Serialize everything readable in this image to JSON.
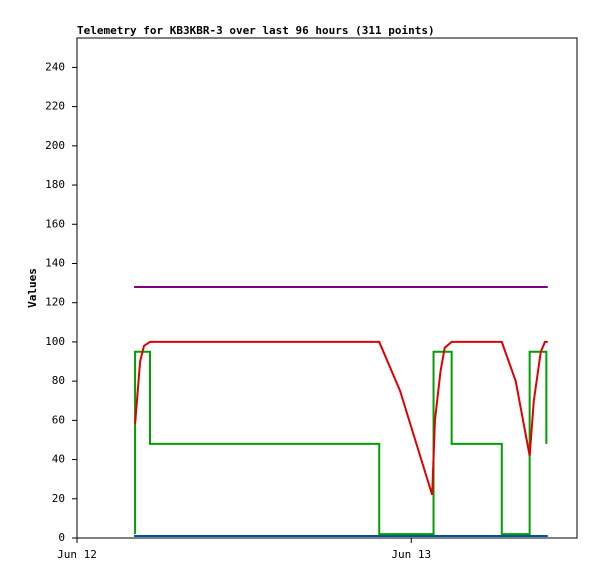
{
  "chart_data": {
    "type": "line",
    "title": "Telemetry for KB3KBR-3 over last 96 hours (311 points)",
    "y_label": "Values",
    "xlim": [
      0,
      35.9
    ],
    "ylim": [
      0,
      255
    ],
    "xticks": [
      {
        "value": 0,
        "label": "Jun 12"
      },
      {
        "value": 24,
        "label": "Jun 13"
      }
    ],
    "yticks": [
      0,
      20,
      40,
      60,
      80,
      100,
      120,
      140,
      160,
      180,
      200,
      220,
      240
    ],
    "grid": false,
    "series": [
      {
        "color": "#800080",
        "x": [
          4.1,
          33.8
        ],
        "values": [
          128,
          128
        ]
      },
      {
        "color": "#0050a0",
        "x": [
          4.1,
          33.8
        ],
        "values": [
          1,
          1
        ]
      },
      {
        "color": "#00a000",
        "x": [
          4.17,
          4.17,
          5.24,
          5.24,
          21.7,
          21.7,
          25.6,
          25.6,
          26.9,
          26.9,
          30.5,
          30.5,
          32.5,
          32.5,
          33.7,
          33.7
        ],
        "values": [
          2,
          95,
          95,
          48,
          48,
          2,
          2,
          95,
          95,
          48,
          48,
          2,
          2,
          95,
          95,
          48
        ]
      },
      {
        "color": "#e00000",
        "x": [
          4.17,
          4.53,
          4.81,
          5.24,
          21.7,
          23.2,
          25.5,
          25.7,
          26.1,
          26.4,
          26.9,
          30.5,
          31.5,
          32.5,
          32.8,
          33.3,
          33.6,
          33.8
        ],
        "values": [
          58,
          90,
          98,
          100,
          100,
          75,
          22,
          60,
          85,
          97,
          100,
          100,
          80,
          42,
          70,
          95,
          100,
          100
        ]
      }
    ]
  }
}
